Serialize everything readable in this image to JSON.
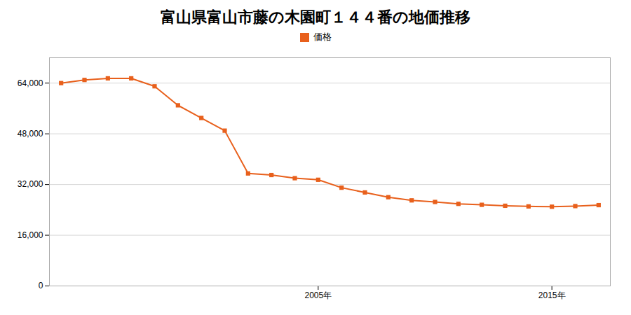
{
  "chart_data": {
    "type": "line",
    "title": "富山県富山市藤の木園町１４４番の地価推移",
    "x": [
      1994,
      1995,
      1996,
      1997,
      1998,
      1999,
      2000,
      2001,
      2002,
      2003,
      2004,
      2005,
      2006,
      2007,
      2008,
      2009,
      2010,
      2011,
      2012,
      2013,
      2014,
      2015,
      2016,
      2017
    ],
    "series": [
      {
        "name": "価格",
        "color": "#E8601C",
        "values": [
          64000,
          65000,
          65500,
          65500,
          63000,
          57000,
          53000,
          49000,
          35500,
          35000,
          34000,
          33500,
          31000,
          29500,
          28000,
          27000,
          26500,
          25900,
          25600,
          25300,
          25100,
          25000,
          25200,
          25500
        ]
      }
    ],
    "marker": "square",
    "xlim": [
      1993.5,
      2017.5
    ],
    "xticks": [
      {
        "value": 2005,
        "label": "2005年"
      },
      {
        "value": 2015,
        "label": "2015年"
      }
    ],
    "ylim": [
      0,
      72000
    ],
    "yticks": [
      0,
      {
        "value": 16000,
        "label": "16,000"
      },
      {
        "value": 32000,
        "label": "32,000"
      },
      {
        "value": 48000,
        "label": "48,000"
      },
      {
        "value": 64000,
        "label": "64,000"
      }
    ],
    "grid": true,
    "legend": "top"
  }
}
